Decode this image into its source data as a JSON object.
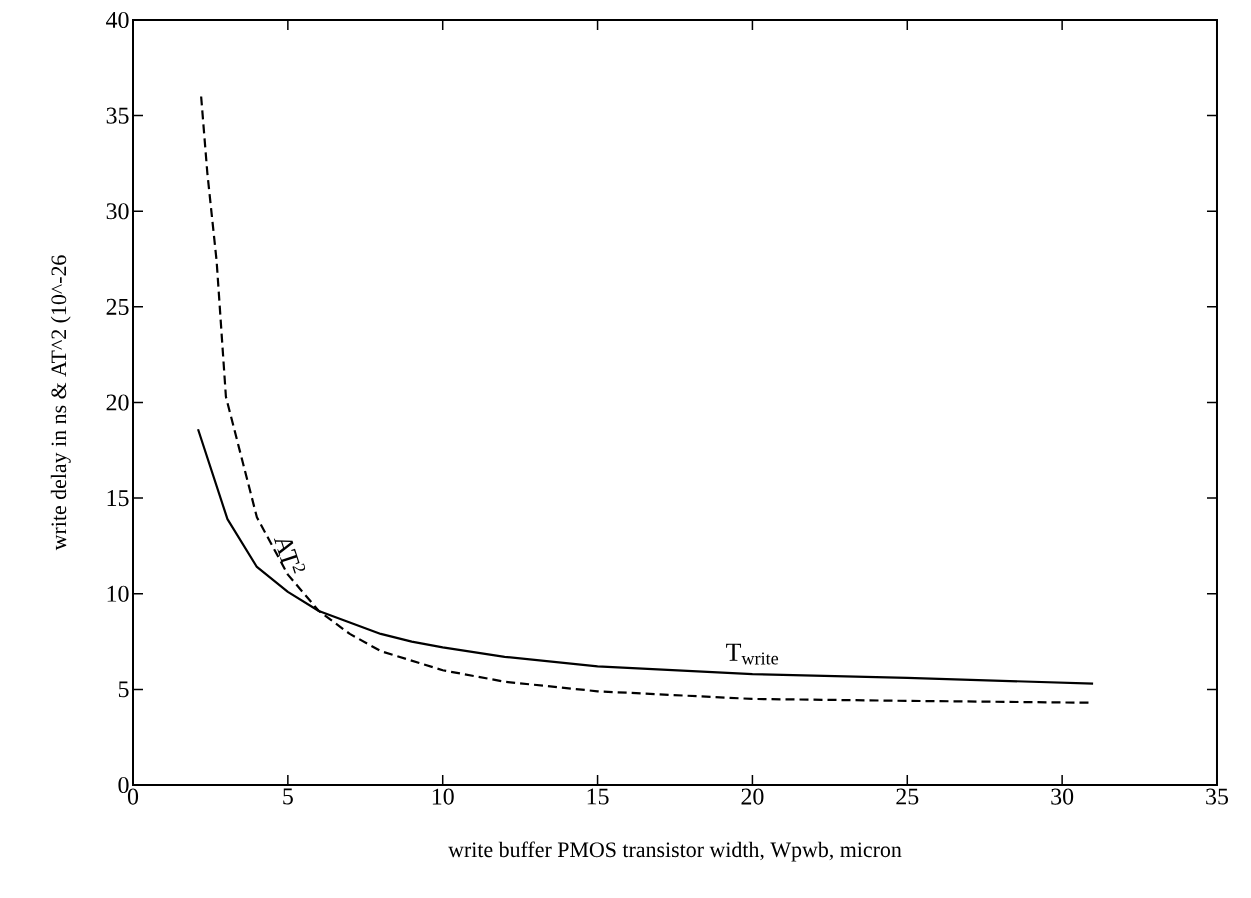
{
  "chart_data": {
    "type": "line",
    "xlabel": "write buffer PMOS transistor width, Wpwb, micron",
    "ylabel": "write delay in ns & AT^2 (10^-26",
    "xlim": [
      0,
      35
    ],
    "ylim": [
      0,
      40
    ],
    "xticks": [
      0,
      5,
      10,
      15,
      20,
      25,
      30,
      35
    ],
    "yticks": [
      0,
      5,
      10,
      15,
      20,
      25,
      30,
      35,
      40
    ],
    "grid": false,
    "marker": "none",
    "series": [
      {
        "name": "T$_{write}$",
        "color": "#000000",
        "line_style": "solid",
        "x": [
          2.1,
          3.05,
          4,
          5,
          6,
          7,
          8,
          9,
          10,
          12,
          15,
          20,
          25,
          31
        ],
        "values": [
          18.6,
          13.9,
          11.4,
          10.1,
          9.1,
          8.5,
          7.9,
          7.5,
          7.2,
          6.7,
          6.2,
          5.8,
          5.6,
          5.3
        ]
      },
      {
        "name": "AT$^{2}$",
        "color": "#000000",
        "line_style": "dashed",
        "x": [
          2.2,
          2.4,
          2.7,
          3,
          4,
          5,
          6,
          7,
          8,
          10,
          12,
          15,
          20,
          25,
          31
        ],
        "values": [
          36,
          32,
          27.4,
          20.3,
          14,
          11,
          9.1,
          7.9,
          7,
          6,
          5.4,
          4.9,
          4.5,
          4.4,
          4.3
        ]
      }
    ]
  }
}
